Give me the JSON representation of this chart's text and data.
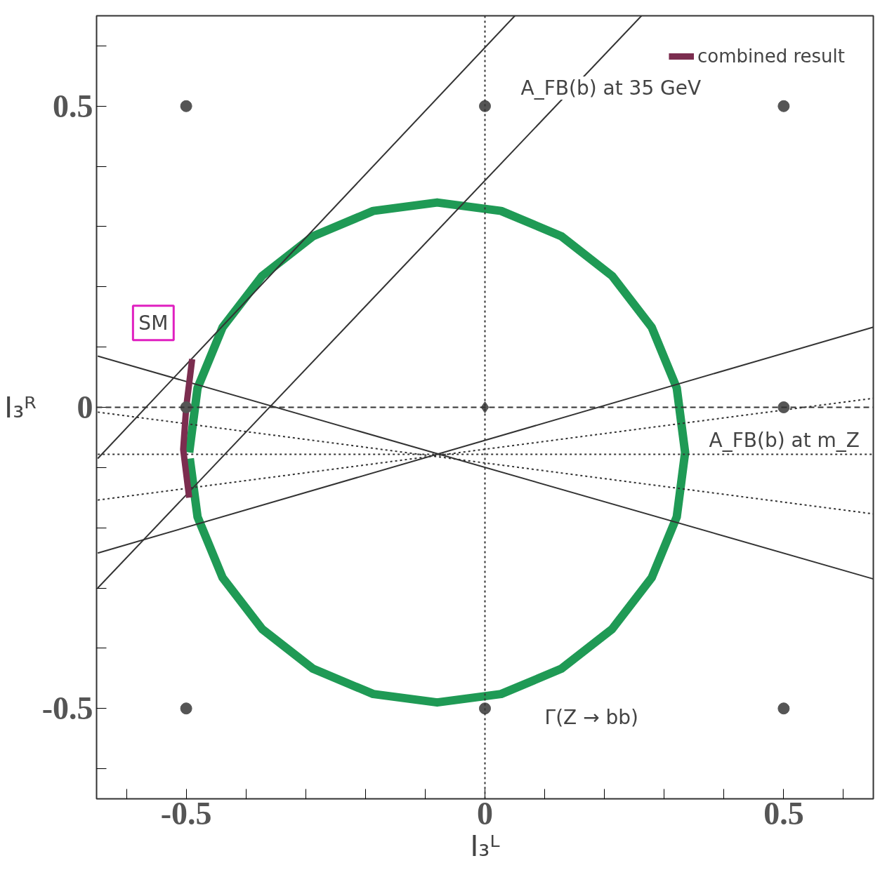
{
  "chart_data": {
    "type": "line",
    "xlabel": "I₃ᴸ",
    "ylabel": "I₃ᴿ",
    "xlim": [
      -0.65,
      0.65
    ],
    "ylim": [
      -0.65,
      0.65
    ],
    "xticks": [
      {
        "value": -0.6,
        "label": null
      },
      -0.5,
      {
        "value": -0.4,
        "label": null
      },
      {
        "value": -0.3,
        "label": null
      },
      {
        "value": -0.2,
        "label": null
      },
      {
        "value": -0.1,
        "label": null
      },
      0,
      {
        "value": 0.1,
        "label": null
      },
      {
        "value": 0.2,
        "label": null
      },
      {
        "value": 0.3,
        "label": null
      },
      {
        "value": 0.4,
        "label": null
      },
      0.5,
      {
        "value": 0.6,
        "label": null
      }
    ],
    "yticks": [
      {
        "value": -0.6,
        "label": null
      },
      -0.5,
      {
        "value": -0.4,
        "label": null
      },
      {
        "value": -0.3,
        "label": null
      },
      {
        "value": -0.2,
        "label": null
      },
      {
        "value": -0.1,
        "label": null
      },
      0,
      {
        "value": 0.1,
        "label": null
      },
      {
        "value": 0.2,
        "label": null
      },
      {
        "value": 0.3,
        "label": null
      },
      {
        "value": 0.4,
        "label": null
      },
      0.5,
      {
        "value": 0.6,
        "label": null
      }
    ],
    "grid": false,
    "legend": "top right",
    "ref_lines": [
      {
        "axis": "x",
        "value": 0,
        "color": "#333333",
        "line_style": "dotted"
      },
      {
        "axis": "y",
        "value": 0,
        "color": "#333333",
        "line_style": "dashed"
      }
    ],
    "series": [
      {
        "type": "line",
        "color": "#1f9a55",
        "x": [
          -0.495,
          -0.481,
          -0.439,
          -0.373,
          -0.288,
          -0.187,
          -0.08,
          0.027,
          0.128,
          0.213,
          0.279,
          0.321,
          0.335,
          0.321,
          0.279,
          0.213,
          0.128,
          0.027,
          -0.08,
          -0.187,
          -0.288,
          -0.373,
          -0.439,
          -0.481,
          -0.494
        ],
        "values": [
          -0.075,
          0.032,
          0.133,
          0.218,
          0.284,
          0.326,
          0.34,
          0.326,
          0.284,
          0.218,
          0.133,
          0.032,
          -0.075,
          -0.182,
          -0.283,
          -0.368,
          -0.434,
          -0.476,
          -0.49,
          -0.476,
          -0.434,
          -0.368,
          -0.283,
          -0.182,
          -0.085
        ]
      },
      {
        "color": "#333333",
        "x": [
          -0.648,
          0.05
        ],
        "values": [
          -0.085,
          0.65
        ]
      },
      {
        "color": "#333333",
        "x": [
          -0.648,
          0.262
        ],
        "values": [
          -0.3,
          0.65
        ]
      },
      {
        "color": "#333333",
        "x": [
          -0.648,
          0.65
        ],
        "values": [
          0.085,
          -0.285
        ]
      },
      {
        "color": "#333333",
        "x": [
          -0.648,
          0.65
        ],
        "values": [
          -0.242,
          0.133
        ]
      },
      {
        "color": "#333333",
        "line_style": "dotted",
        "x": [
          -0.648,
          0.65
        ],
        "values": [
          -0.078,
          -0.078
        ]
      },
      {
        "color": "#333333",
        "line_style": "dotted",
        "x": [
          -0.648,
          0.65
        ],
        "values": [
          -0.154,
          0.015
        ]
      },
      {
        "color": "#333333",
        "line_style": "dotted",
        "x": [
          -0.648,
          0.65
        ],
        "values": [
          -0.008,
          -0.177
        ]
      },
      {
        "name": "combined result",
        "color": "#7b2d4f",
        "x": [
          -0.49,
          -0.5,
          -0.505,
          -0.495
        ],
        "values": [
          0.08,
          0.0,
          -0.07,
          -0.15
        ]
      },
      {
        "type": "scatter",
        "marker": "circle",
        "color": "#555555",
        "x": [
          -0.5,
          0,
          0.5,
          -0.5,
          0.5,
          -0.5,
          0,
          0.5
        ],
        "values": [
          0.5,
          0.5,
          0.5,
          0,
          0,
          -0.5,
          -0.5,
          -0.5
        ]
      },
      {
        "type": "scatter",
        "marker": "diamond",
        "color": "#555555",
        "x": [
          0
        ],
        "values": [
          0
        ]
      }
    ],
    "annotations": [
      "SM",
      "A_FB(b) at 35 GeV",
      "A_FB(b) at m_Z",
      "Γ(Z → bb)"
    ]
  }
}
